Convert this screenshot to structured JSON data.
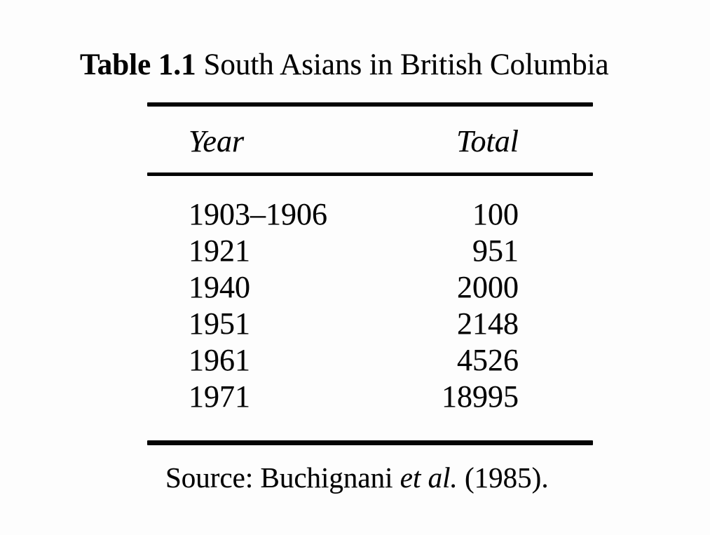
{
  "page": {
    "background_color": "#fdfdfd",
    "ink_color": "#030303"
  },
  "table": {
    "title_bold": "Table 1.1",
    "title_rest": " South Asians in British Columbia",
    "columns": {
      "year": "Year",
      "total": "Total"
    },
    "rows": [
      {
        "year": "1903–1906",
        "total": "100"
      },
      {
        "year": "1921",
        "total": "951"
      },
      {
        "year": "1940",
        "total": "2000"
      },
      {
        "year": "1951",
        "total": "2148"
      },
      {
        "year": "1961",
        "total": "4526"
      },
      {
        "year": "1971",
        "total": "18995"
      }
    ],
    "source_prefix": "Source: Buchignani ",
    "source_italic": "et al.",
    "source_suffix": " (1985)."
  },
  "chart_data": {
    "type": "table",
    "title": "Table 1.1 South Asians in British Columbia",
    "columns": [
      "Year",
      "Total"
    ],
    "rows": [
      [
        "1903–1906",
        100
      ],
      [
        "1921",
        951
      ],
      [
        "1940",
        2000
      ],
      [
        "1951",
        2148
      ],
      [
        "1961",
        4526
      ],
      [
        "1971",
        18995
      ]
    ],
    "source": "Source: Buchignani et al. (1985)."
  }
}
